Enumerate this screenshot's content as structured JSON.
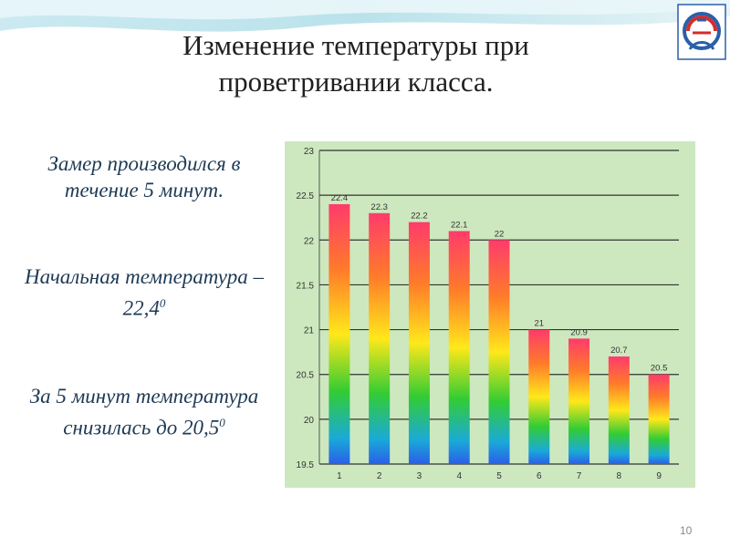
{
  "slide": {
    "title_line1": "Изменение  температуры при",
    "title_line2": "проветривании класса.",
    "note1": "Замер производился в течение 5 минут.",
    "note2_text": "Начальная температура – 22,4",
    "note2_sup": "0",
    "note3_text": "За 5 минут температура снизилась до 20,5",
    "note3_sup": "0",
    "page_number": "10"
  },
  "colors": {
    "plot_background": "#cde8bf",
    "grid": "#333333",
    "title": "#1f1f1f",
    "note_text": "#1e3a55"
  },
  "chart_data": {
    "type": "bar",
    "categories": [
      "1",
      "2",
      "3",
      "4",
      "5",
      "6",
      "7",
      "8",
      "9"
    ],
    "values": [
      22.4,
      22.3,
      22.2,
      22.1,
      22,
      21,
      20.9,
      20.7,
      20.5
    ],
    "value_labels": [
      "22.4",
      "22.3",
      "22.2",
      "22.1",
      "22",
      "21",
      "20.9",
      "20.7",
      "20.5"
    ],
    "ylim": [
      19.5,
      23
    ],
    "yticks": [
      19.5,
      20,
      20.5,
      21,
      21.5,
      22,
      22.5,
      23
    ],
    "ytick_labels": [
      "19.5",
      "20",
      "20.5",
      "21",
      "21.5",
      "22",
      "22.5",
      "23"
    ],
    "grid": true,
    "legend": "none",
    "title": "",
    "xlabel": "",
    "ylabel": ""
  }
}
